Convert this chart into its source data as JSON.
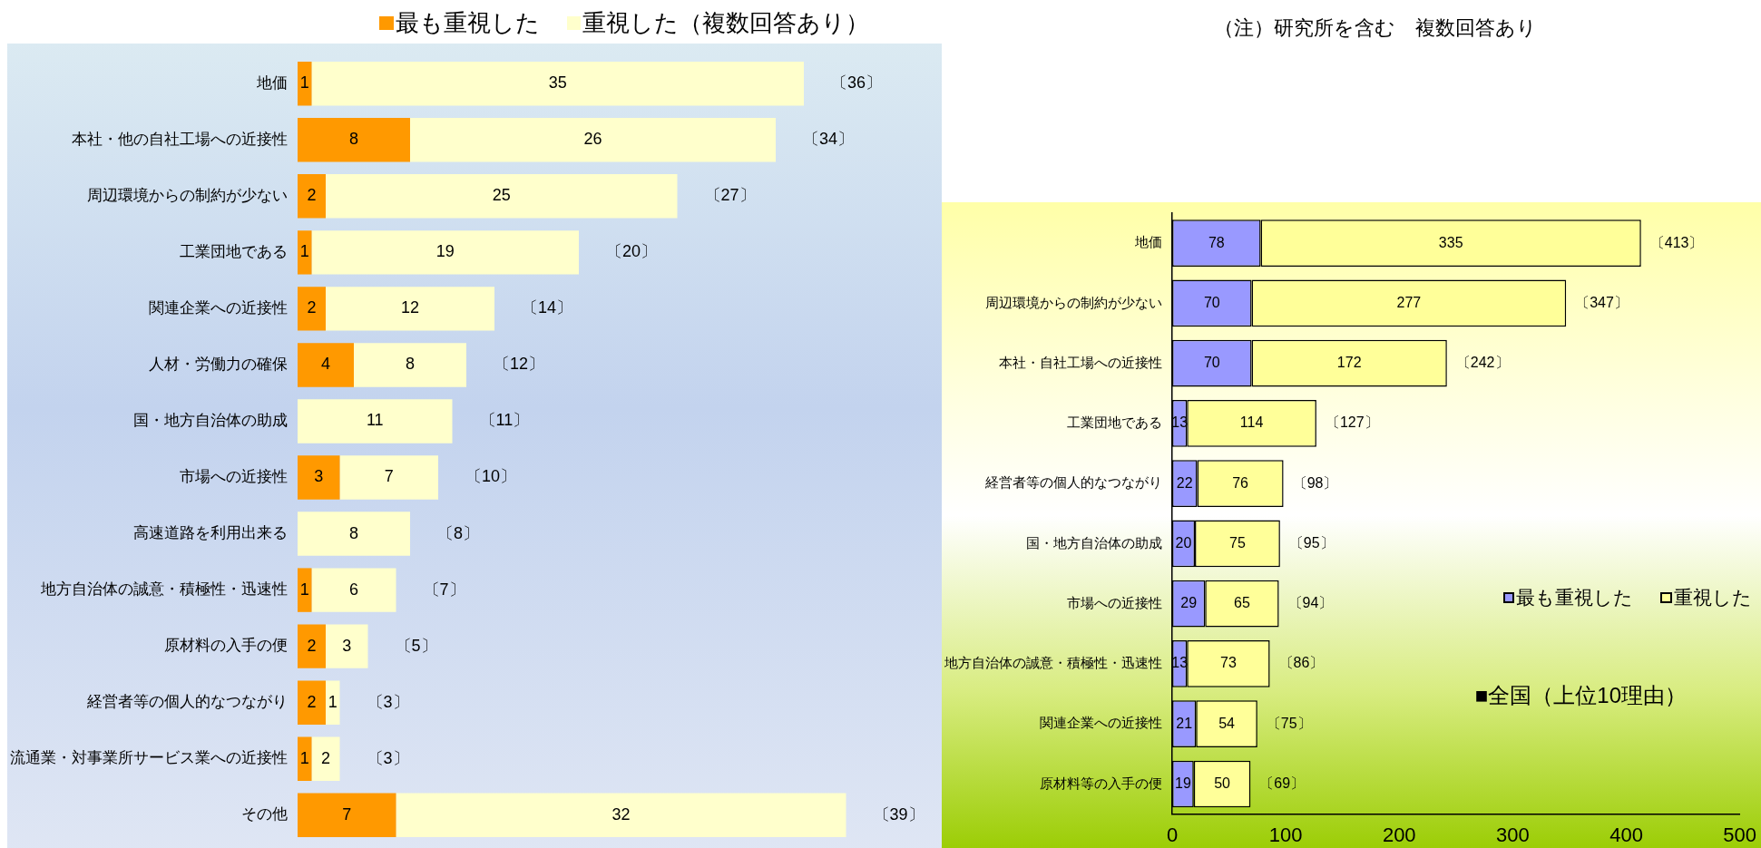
{
  "chart_data": [
    {
      "type": "bar",
      "orientation": "horizontal",
      "stacked": true,
      "data_labels": true,
      "legend": "top",
      "categories": [
        "地価",
        "本社・他の自社工場への近接性",
        "周辺環境からの制約が少ない",
        "工業団地である",
        "関連企業への近接性",
        "人材・労働力の確保",
        "国・地方自治体の助成",
        "市場への近接性",
        "高速道路を利用出来る",
        "地方自治体の誠意・積極性・迅速性",
        "原材料の入手の便",
        "経営者等の個人的なつながり",
        "流通業・対事業所サービス業への近接性",
        "その他"
      ],
      "series": [
        {
          "name": "最も重視した",
          "color": "#ff9900",
          "values": [
            1,
            8,
            2,
            1,
            2,
            4,
            null,
            3,
            null,
            1,
            2,
            2,
            1,
            7
          ]
        },
        {
          "name": "重視した（複数回答あり）",
          "color": "#ffffcc",
          "values": [
            35,
            26,
            25,
            19,
            12,
            8,
            11,
            7,
            8,
            6,
            3,
            1,
            2,
            32
          ]
        }
      ],
      "totals": [
        "〔36〕",
        "〔34〕",
        "〔27〕",
        "〔20〕",
        "〔14〕",
        "〔12〕",
        "〔11〕",
        "〔10〕",
        "〔8〕",
        "〔7〕",
        "〔5〕",
        "〔3〕",
        "〔3〕",
        "〔39〕"
      ]
    },
    {
      "type": "bar",
      "orientation": "horizontal",
      "stacked": true,
      "data_labels": true,
      "legend": "bottom right",
      "title": "■全国（上位10理由）",
      "annotations": [
        "（注）研究所を含む　複数回答あり"
      ],
      "categories": [
        "地価",
        "周辺環境からの制約が少ない",
        "本社・自社工場への近接性",
        "工業団地である",
        "経営者等の個人的なつながり",
        "国・地方自治体の助成",
        "市場への近接性",
        "地方自治体の誠意・積極性・迅速性",
        "関連企業への近接性",
        "原材料等の入手の便"
      ],
      "series": [
        {
          "name": "最も重視した",
          "color": "#9999ff",
          "values": [
            78,
            70,
            70,
            13,
            22,
            20,
            29,
            13,
            21,
            19
          ]
        },
        {
          "name": "重視した",
          "color": "#ffff99",
          "values": [
            335,
            277,
            172,
            114,
            76,
            75,
            65,
            73,
            54,
            50
          ]
        }
      ],
      "totals": [
        "〔413〕",
        "〔347〕",
        "〔242〕",
        "〔127〕",
        "〔98〕",
        "〔95〕",
        "〔94〕",
        "〔86〕",
        "〔75〕",
        "〔69〕"
      ],
      "xlim": [
        0,
        500
      ],
      "xticks": [
        0,
        100,
        200,
        300,
        400,
        500
      ]
    }
  ]
}
